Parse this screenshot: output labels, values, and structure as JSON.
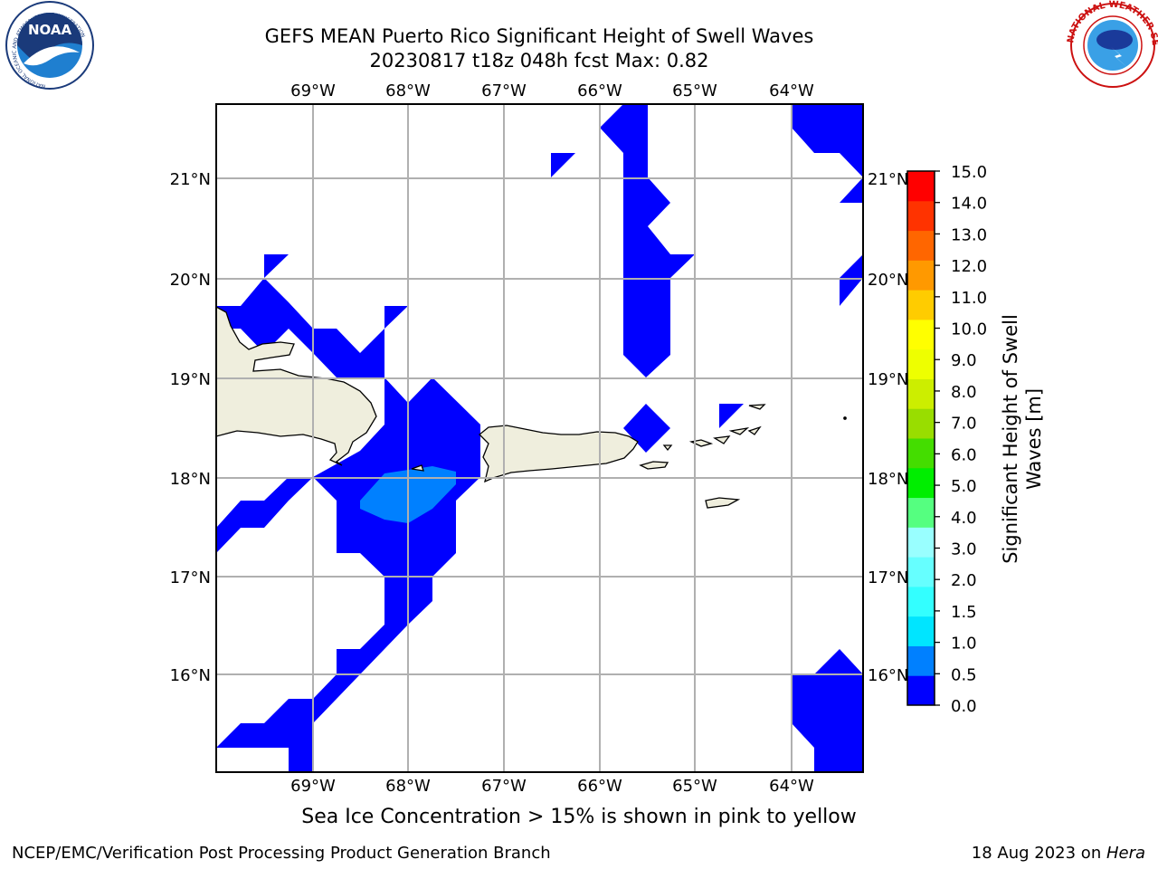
{
  "title": {
    "line1": "GEFS MEAN Puerto Rico Significant Height of Swell Waves",
    "line2": "20230817 t18z 048h fcst   Max: 0.82"
  },
  "map": {
    "lon_labels": [
      "69°W",
      "68°W",
      "67°W",
      "66°W",
      "65°W",
      "64°W"
    ],
    "lat_labels": [
      "21°N",
      "20°N",
      "19°N",
      "18°N",
      "17°N",
      "16°N"
    ],
    "land_color": "#efeedd",
    "grid_color": "#b0b0b0"
  },
  "colorbar": {
    "label_line1": "Significant Height of Swell",
    "label_line2": "Waves [m]",
    "ticks": [
      "0.0",
      "0.5",
      "1.0",
      "1.5",
      "2.0",
      "3.0",
      "4.0",
      "5.0",
      "6.0",
      "7.0",
      "8.0",
      "9.0",
      "10.0",
      "11.0",
      "12.0",
      "13.0",
      "14.0",
      "15.0"
    ],
    "colors": [
      "#0000ff",
      "#0080ff",
      "#00e5ff",
      "#33ffff",
      "#66ffff",
      "#99ffff",
      "#55ff80",
      "#00ee00",
      "#44dd00",
      "#99dd00",
      "#ccee00",
      "#eeff00",
      "#ffff00",
      "#ffcc00",
      "#ff9900",
      "#ff6600",
      "#ff3300",
      "#ff0000"
    ]
  },
  "note": "Sea Ice Concentration > 15% is shown in pink to yellow",
  "footer": {
    "left": "NCEP/EMC/Verification Post Processing Product Generation Branch",
    "right_date": "18 Aug 2023 on ",
    "right_host": "Hera"
  },
  "logos": {
    "noaa_text": "NOAA",
    "noaa_ring": "NATIONAL OCEANIC AND ATMOSPHERIC ADMINISTRATION",
    "noaa_dept": "U.S. DEPARTMENT OF COMMERCE",
    "nws_ring": "NATIONAL WEATHER SERVICE"
  }
}
